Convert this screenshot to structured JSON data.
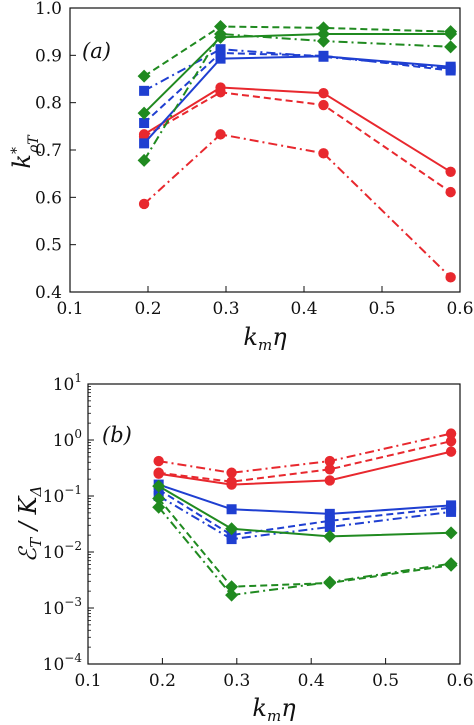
{
  "chart_data": [
    {
      "type": "line",
      "panel_label": "(a)",
      "xlabel": "k_m η",
      "ylabel": "k*_ρT",
      "xlim": [
        0.1,
        0.6
      ],
      "ylim": [
        0.4,
        1.0
      ],
      "xticks": [
        "0.1",
        "0.2",
        "0.3",
        "0.4",
        "0.5",
        "0.6"
      ],
      "yticks": [
        "0.4",
        "0.5",
        "0.6",
        "0.7",
        "0.8",
        "0.9",
        "1.0"
      ],
      "x": [
        0.195,
        0.293,
        0.425,
        0.588
      ],
      "series": [
        {
          "color": "#e8282e",
          "marker": "circle",
          "linestyle": "solid",
          "values": [
            0.733,
            0.832,
            0.82,
            0.654
          ]
        },
        {
          "color": "#e8282e",
          "marker": "circle",
          "linestyle": "dashed",
          "values": [
            0.728,
            0.822,
            0.795,
            0.611
          ]
        },
        {
          "color": "#e8282e",
          "marker": "circle",
          "linestyle": "dashdot",
          "values": [
            0.586,
            0.733,
            0.693,
            0.431
          ]
        },
        {
          "color": "#1f3fd1",
          "marker": "square",
          "linestyle": "solid",
          "values": [
            0.714,
            0.893,
            0.898,
            0.876
          ]
        },
        {
          "color": "#1f3fd1",
          "marker": "square",
          "linestyle": "dashed",
          "values": [
            0.757,
            0.905,
            0.899,
            0.868
          ]
        },
        {
          "color": "#1f3fd1",
          "marker": "square",
          "linestyle": "dashdot",
          "values": [
            0.825,
            0.913,
            0.897,
            0.872
          ]
        },
        {
          "color": "#208a20",
          "marker": "diamond",
          "linestyle": "solid",
          "values": [
            0.778,
            0.938,
            0.945,
            0.945
          ]
        },
        {
          "color": "#208a20",
          "marker": "diamond",
          "linestyle": "dashed",
          "values": [
            0.856,
            0.961,
            0.958,
            0.95
          ]
        },
        {
          "color": "#208a20",
          "marker": "diamond",
          "linestyle": "dashdot",
          "values": [
            0.678,
            0.945,
            0.93,
            0.918
          ]
        }
      ]
    },
    {
      "type": "line",
      "panel_label": "(b)",
      "xlabel": "k_m η",
      "ylabel": "ℰ_T / K_Δ",
      "xlim": [
        0.1,
        0.6
      ],
      "ylim": [
        0.0001,
        10
      ],
      "yscale": "log",
      "xticks": [
        "0.1",
        "0.2",
        "0.3",
        "0.4",
        "0.5",
        "0.6"
      ],
      "yticks": [
        "10^-4",
        "10^-3",
        "10^-2",
        "10^-1",
        "10^0",
        "10^1"
      ],
      "x": [
        0.195,
        0.293,
        0.425,
        0.588
      ],
      "series": [
        {
          "color": "#e8282e",
          "marker": "circle",
          "linestyle": "solid",
          "values": [
            0.25,
            0.16,
            0.19,
            0.62
          ]
        },
        {
          "color": "#e8282e",
          "marker": "circle",
          "linestyle": "dashed",
          "values": [
            0.26,
            0.18,
            0.3,
            0.95
          ]
        },
        {
          "color": "#e8282e",
          "marker": "circle",
          "linestyle": "dashdot",
          "values": [
            0.42,
            0.26,
            0.42,
            1.3
          ]
        },
        {
          "color": "#1f3fd1",
          "marker": "square",
          "linestyle": "solid",
          "values": [
            0.16,
            0.058,
            0.048,
            0.068
          ]
        },
        {
          "color": "#1f3fd1",
          "marker": "square",
          "linestyle": "dashed",
          "values": [
            0.13,
            0.02,
            0.036,
            0.062
          ]
        },
        {
          "color": "#1f3fd1",
          "marker": "square",
          "linestyle": "dashdot",
          "values": [
            0.1,
            0.017,
            0.028,
            0.052
          ]
        },
        {
          "color": "#208a20",
          "marker": "diamond",
          "linestyle": "solid",
          "values": [
            0.15,
            0.026,
            0.019,
            0.022
          ]
        },
        {
          "color": "#208a20",
          "marker": "diamond",
          "linestyle": "dashed",
          "values": [
            0.09,
            0.0024,
            0.0028,
            0.0058
          ]
        },
        {
          "color": "#208a20",
          "marker": "diamond",
          "linestyle": "dashdot",
          "values": [
            0.063,
            0.0017,
            0.0029,
            0.0062
          ]
        }
      ]
    }
  ]
}
